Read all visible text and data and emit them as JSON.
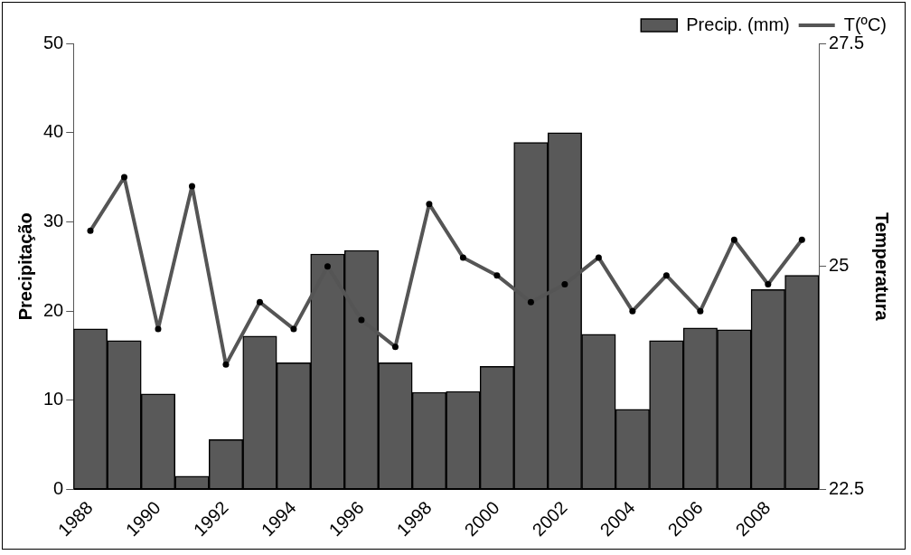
{
  "chart_data": {
    "type": "bar",
    "categories": [
      "1988",
      null,
      "1990",
      null,
      "1992",
      null,
      "1994",
      null,
      "1996",
      null,
      "1998",
      null,
      "2000",
      null,
      "2002",
      null,
      "2004",
      null,
      "2006",
      null,
      "2008",
      null
    ],
    "ylabel": "Precipitação",
    "y2label": "Temperatura",
    "ylim": [
      0,
      50
    ],
    "yticks": [
      0,
      10,
      20,
      30,
      40,
      50
    ],
    "y2lim": [
      22.5,
      27.5
    ],
    "y2ticks": [
      22.5,
      25,
      27.5
    ],
    "series": [
      {
        "name": "Precip. (mm)",
        "color": "#595959",
        "values": [
          18.0,
          16.7,
          10.7,
          1.5,
          5.6,
          17.2,
          14.2,
          26.4,
          26.8,
          14.2,
          10.9,
          11.0,
          13.8,
          38.9,
          40.0,
          17.4,
          9.0,
          16.7,
          18.1,
          17.9,
          22.4,
          24.0
        ]
      },
      {
        "name": "T(ºC)",
        "type": "line",
        "axis": "y2",
        "color": "#555555",
        "marker": "circle",
        "values": [
          25.4,
          26.0,
          24.3,
          25.9,
          23.9,
          24.6,
          24.3,
          25.0,
          24.4,
          24.1,
          25.7,
          25.1,
          24.9,
          24.6,
          24.8,
          25.1,
          24.5,
          24.9,
          24.5,
          25.3,
          24.8,
          25.3
        ]
      }
    ],
    "legend": "top right",
    "grid": false
  }
}
